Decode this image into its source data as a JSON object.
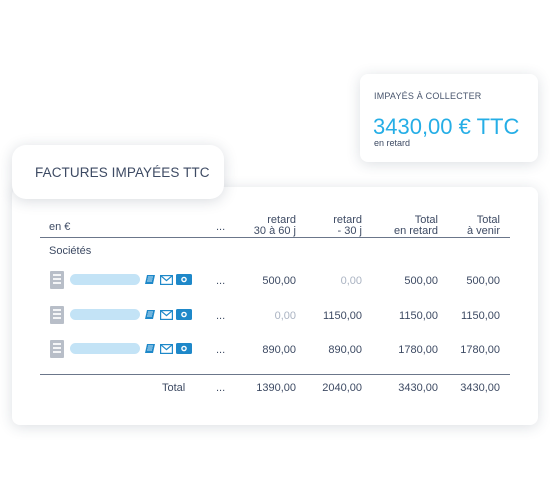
{
  "summary": {
    "label": "IMPAYÉS À COLLECTER",
    "amount": "3430,00 € TTC",
    "sub": "en retard"
  },
  "title": "FACTURES IMPAYÉES TTC",
  "table": {
    "currency_label": "en €",
    "ellipsis": "...",
    "headers": {
      "retard_30_60_line1": "retard",
      "retard_30_60_line2": "30 à 60 j",
      "retard_30_line1": "retard",
      "retard_30_line2": "- 30 j",
      "total_retard_line1": "Total",
      "total_retard_line2": "en retard",
      "total_venir_line1": "Total",
      "total_venir_line2": "à venir"
    },
    "section_label": "Sociétés",
    "rows": [
      {
        "retard_30_60": "500,00",
        "retard_30": "0,00",
        "total_retard": "500,00",
        "total_venir": "500,00"
      },
      {
        "retard_30_60": "0,00",
        "retard_30": "1150,00",
        "total_retard": "1150,00",
        "total_venir": "1150,00"
      },
      {
        "retard_30_60": "890,00",
        "retard_30": "890,00",
        "total_retard": "1780,00",
        "total_venir": "1780,00"
      }
    ],
    "total": {
      "label": "Total",
      "retard_30_60": "1390,00",
      "retard_30": "2040,00",
      "total_retard": "3430,00",
      "total_venir": "3430,00"
    }
  },
  "colors": {
    "accent": "#25aee6",
    "text": "#3d4a63",
    "muted": "#aab3c2",
    "name_bar": "#c3e3f6",
    "icon_blue": "#1e88c9"
  },
  "icons": [
    "company-icon",
    "document-icon",
    "mail-icon",
    "money-icon"
  ]
}
